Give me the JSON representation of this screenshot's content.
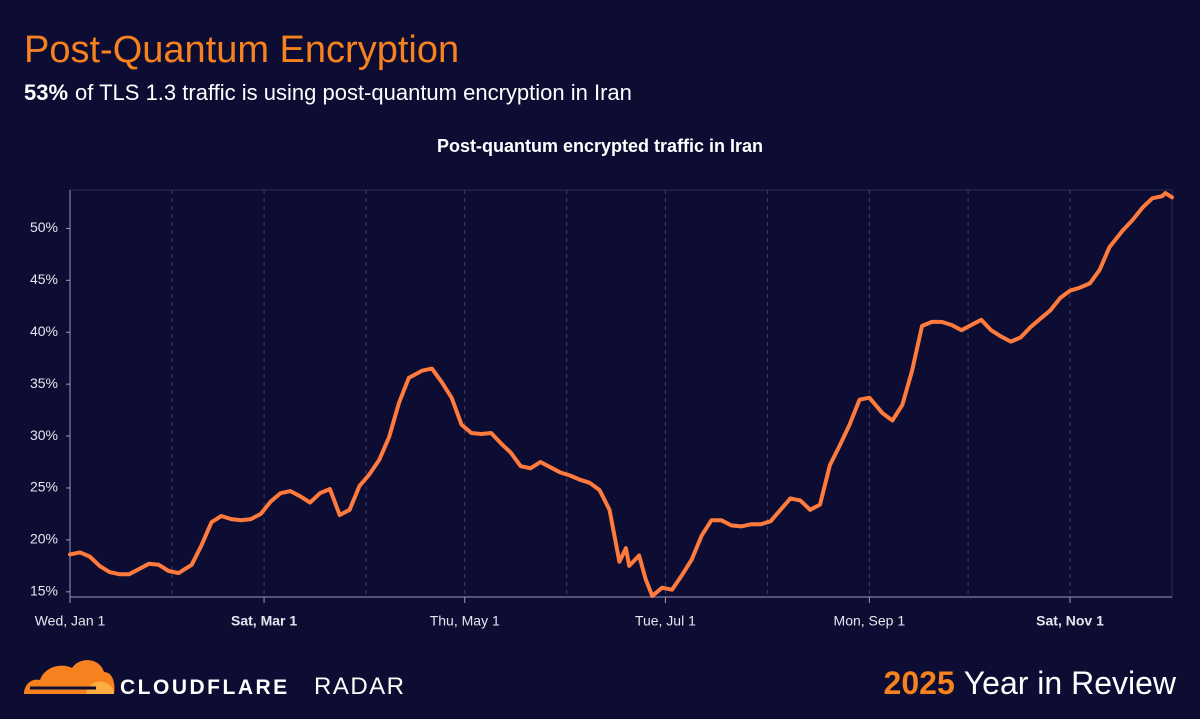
{
  "chart_data": {
    "type": "line",
    "header_title": "Post-Quantum Encryption",
    "subtitle_highlight": "53%",
    "subtitle": "of TLS 1.3 traffic is using post-quantum encryption in Iran",
    "title": "Post-quantum encrypted traffic in Iran",
    "x": [
      0,
      3,
      6,
      9,
      12,
      15,
      18,
      21,
      24,
      27,
      30,
      33,
      37,
      40,
      43,
      46,
      49,
      52,
      55,
      58,
      61,
      64,
      67,
      70,
      73,
      76,
      79,
      82,
      85,
      88,
      91,
      94,
      97,
      100,
      103,
      107,
      110,
      113,
      116,
      119,
      122,
      125,
      128,
      131,
      134,
      137,
      140,
      143,
      146,
      149,
      152,
      155,
      158,
      161,
      164,
      167,
      169,
      170,
      173,
      175,
      177,
      180,
      183,
      186,
      189,
      192,
      195,
      198,
      201,
      204,
      207,
      210,
      213,
      216,
      219,
      222,
      225,
      228,
      231,
      234,
      237,
      240,
      243,
      247,
      250,
      253,
      256,
      259,
      262,
      265,
      268,
      271,
      274,
      277,
      280,
      283,
      286,
      289,
      292,
      295,
      298,
      301,
      304,
      307,
      310,
      313,
      316,
      320,
      323,
      326,
      329,
      332,
      333,
      335
    ],
    "series": [
      {
        "name": "Post-quantum encrypted traffic",
        "color": "#ff7a3d",
        "values": [
          18.6,
          18.8,
          18.4,
          17.5,
          16.9,
          16.7,
          16.7,
          17.2,
          17.7,
          17.6,
          17.0,
          16.8,
          17.6,
          19.5,
          21.7,
          22.3,
          22.0,
          21.9,
          22.0,
          22.5,
          23.7,
          24.5,
          24.7,
          24.2,
          23.6,
          24.5,
          24.9,
          22.4,
          22.9,
          25.2,
          26.3,
          27.7,
          29.9,
          33.2,
          35.6,
          36.3,
          36.5,
          35.2,
          33.7,
          31.1,
          30.3,
          30.2,
          30.3,
          29.3,
          28.4,
          27.1,
          26.9,
          27.5,
          27.0,
          26.5,
          26.2,
          25.8,
          25.5,
          24.8,
          22.9,
          17.9,
          19.2,
          17.5,
          18.5,
          16.2,
          14.6,
          15.4,
          15.2,
          16.6,
          18.1,
          20.4,
          21.9,
          21.9,
          21.4,
          21.3,
          21.5,
          21.5,
          21.8,
          22.9,
          24.0,
          23.8,
          22.9,
          23.4,
          27.2,
          29.1,
          31.1,
          33.5,
          33.7,
          32.2,
          31.5,
          33.0,
          36.3,
          40.6,
          41.0,
          41.0,
          40.7,
          40.2,
          40.7,
          41.2,
          40.2,
          39.6,
          39.1,
          39.5,
          40.5,
          41.3,
          42.1,
          43.3,
          44.0,
          44.3,
          44.7,
          46.0,
          48.2,
          49.8,
          50.8,
          52.0,
          52.9,
          53.1,
          53.4,
          53.0
        ]
      }
    ],
    "xlim": [
      0,
      335
    ],
    "xticks": [
      {
        "value": 0,
        "label": "Wed, Jan 1"
      },
      {
        "value": 59,
        "label": "Sat, Mar 1",
        "bold": true
      },
      {
        "value": 120,
        "label": "Thu, May 1"
      },
      {
        "value": 181,
        "label": "Tue, Jul 1"
      },
      {
        "value": 243,
        "label": "Mon, Sep 1"
      },
      {
        "value": 304,
        "label": "Sat, Nov 1",
        "bold": true
      }
    ],
    "xminor_ticks": [
      31,
      90,
      151,
      212,
      273
    ],
    "ylim": [
      14.5,
      53.7
    ],
    "yticks": [
      {
        "value": 15,
        "label": "15%"
      },
      {
        "value": 20,
        "label": "20%"
      },
      {
        "value": 25,
        "label": "25%"
      },
      {
        "value": 30,
        "label": "30%"
      },
      {
        "value": 35,
        "label": "35%"
      },
      {
        "value": 40,
        "label": "40%"
      },
      {
        "value": 45,
        "label": "45%"
      },
      {
        "value": 50,
        "label": "50%"
      }
    ],
    "brand": "CLOUDFLARE",
    "product": "RADAR",
    "footer_year": "2025",
    "footer_text": "Year in Review"
  }
}
